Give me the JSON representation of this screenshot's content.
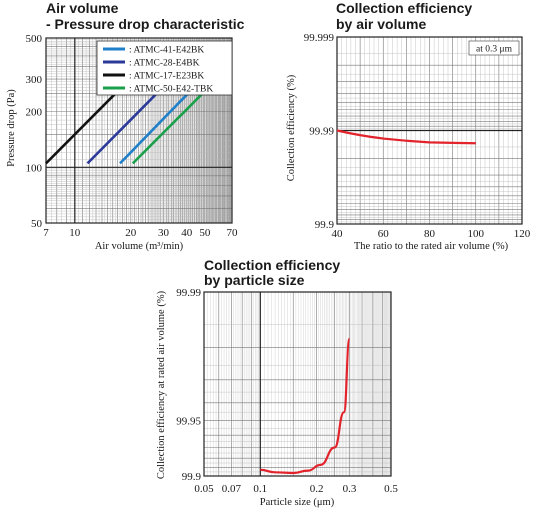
{
  "chart_data": [
    {
      "type": "line",
      "title": "Air volume",
      "subtitle": "- Pressure drop characteristic",
      "xlabel": "Air volume (m³/min)",
      "ylabel": "Pressure drop (Pa)",
      "x_scale": "log",
      "y_scale": "log",
      "xlim": [
        7,
        70
      ],
      "ylim": [
        50,
        500
      ],
      "xticks": [
        7,
        10,
        20,
        30,
        40,
        50,
        70
      ],
      "yticks": [
        50,
        100,
        200,
        300,
        500
      ],
      "grid": true,
      "legend_position": "top-right",
      "series": [
        {
          "name": ": ATMC-41-E42BK",
          "color": "#1f7fc8",
          "x": [
            17.5,
            40.5
          ],
          "y": [
            105,
            250
          ]
        },
        {
          "name": ": ATMC-28-E4BK",
          "color": "#2b3a9a",
          "x": [
            11.7,
            27.5
          ],
          "y": [
            105,
            250
          ]
        },
        {
          "name": ": ATMC-17-E23BK",
          "color": "#111111",
          "x": [
            7.0,
            16.5
          ],
          "y": [
            105,
            250
          ]
        },
        {
          "name": ": ATMC-50-E42-TBK",
          "color": "#1aa04a",
          "x": [
            20.5,
            48.5
          ],
          "y": [
            105,
            250
          ]
        }
      ]
    },
    {
      "type": "line",
      "title": "Collection efficiency",
      "subtitle": "by air volume",
      "xlabel": "The ratio to the rated air volume (%)",
      "ylabel": "Collection efficiency (%)",
      "xlim": [
        40,
        120
      ],
      "ylim_labels": [
        "99.9",
        "99.99",
        "99.999"
      ],
      "xticks": [
        40,
        60,
        80,
        100,
        120
      ],
      "yticks": [
        "99.9",
        "99.99",
        "99.999"
      ],
      "annotation": "at 0.3 μm",
      "grid": true,
      "series": [
        {
          "color": "#e3232c",
          "x": [
            40,
            60,
            80,
            100
          ],
          "y": [
            99.99,
            99.9878,
            99.9866,
            99.9863
          ]
        }
      ]
    },
    {
      "type": "line",
      "title": "Collection efficiency",
      "subtitle": "by particle size",
      "xlabel": "Particle size (μm)",
      "ylabel": "Collection efficiency at rated air volume (%)",
      "x_scale": "log",
      "xlim": [
        0.05,
        0.5
      ],
      "ylim": [
        99.9,
        99.99
      ],
      "xticks": [
        0.05,
        0.07,
        0.1,
        0.2,
        0.3,
        0.5
      ],
      "xtick_labels": [
        "0.05",
        "0.07",
        "0.1",
        "0.2",
        "0.3",
        "0.5"
      ],
      "yticks": [
        "99.9",
        "99.95",
        "99.99"
      ],
      "grid": true,
      "series": [
        {
          "color": "#e3232c",
          "x": [
            0.1,
            0.12,
            0.15,
            0.18,
            0.21,
            0.25,
            0.28,
            0.3
          ],
          "y": [
            99.9075,
            99.9045,
            99.9037,
            99.9065,
            99.913,
            99.93,
            99.955,
            99.982
          ]
        }
      ]
    }
  ]
}
